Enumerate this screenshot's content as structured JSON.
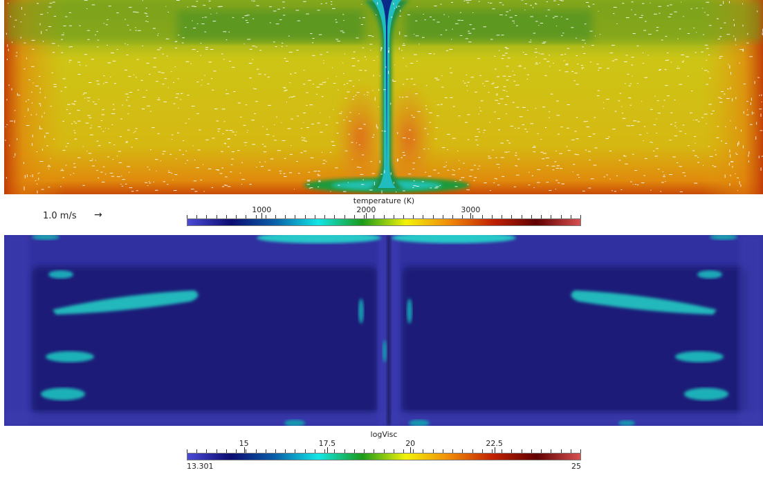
{
  "velocity_scale": {
    "label": "1.0 m/s",
    "arrow": "→"
  },
  "temperature_colorbar": {
    "title": "temperature (K)",
    "ticks": [
      {
        "label": "1000",
        "frac": 0.19
      },
      {
        "label": "2000",
        "frac": 0.455
      },
      {
        "label": "3000",
        "frac": 0.72
      }
    ]
  },
  "viscosity_colorbar": {
    "title": "logVisc",
    "ticks": [
      {
        "label": "15",
        "frac": 0.145
      },
      {
        "label": "17.5",
        "frac": 0.356
      },
      {
        "label": "20",
        "frac": 0.567
      },
      {
        "label": "22.5",
        "frac": 0.78
      }
    ],
    "min_label": "13.301",
    "max_label": "25"
  },
  "colors": {
    "colormap": [
      "#4b4bd6",
      "#0b0b70",
      "#0a5fa8",
      "#12e6e6",
      "#1a9a1a",
      "#f2f20a",
      "#f08a0a",
      "#c02000",
      "#600000",
      "#d85050"
    ],
    "temperature_background": "#c9c216",
    "viscosity_background": "#2a2a88"
  }
}
